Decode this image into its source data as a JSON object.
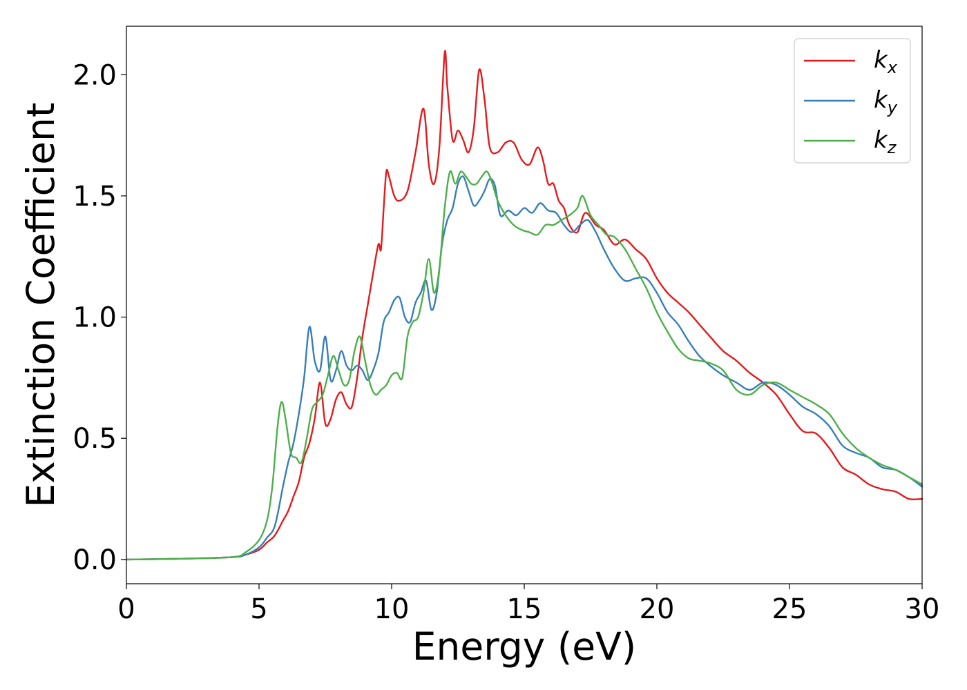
{
  "chart_data": {
    "type": "line",
    "title": "",
    "xlabel": "Energy (eV)",
    "ylabel": "Extinction Coefficient",
    "xlim": [
      0,
      30
    ],
    "ylim": [
      -0.1,
      2.2
    ],
    "xticks": [
      0,
      5,
      10,
      15,
      20,
      25,
      30
    ],
    "xtick_labels": [
      "0",
      "5",
      "10",
      "15",
      "20",
      "25",
      "30"
    ],
    "yticks": [
      0.0,
      0.5,
      1.0,
      1.5,
      2.0
    ],
    "ytick_labels": [
      "0.0",
      "0.5",
      "1.0",
      "1.5",
      "2.0"
    ],
    "grid": false,
    "legend_position": "top-right",
    "series": [
      {
        "name": "k",
        "sub": "x",
        "color": "#e41a1c",
        "x": [
          0,
          2,
          4,
          4.5,
          5,
          5.3,
          5.6,
          5.9,
          6.1,
          6.3,
          6.5,
          6.7,
          6.9,
          7.1,
          7.3,
          7.5,
          7.7,
          7.9,
          8.1,
          8.3,
          8.5,
          8.7,
          8.9,
          9.1,
          9.3,
          9.5,
          9.6,
          9.7,
          9.8,
          9.9,
          10.1,
          10.3,
          10.6,
          10.9,
          11.2,
          11.4,
          11.6,
          11.8,
          12.0,
          12.1,
          12.3,
          12.5,
          12.7,
          12.9,
          13.1,
          13.3,
          13.5,
          13.7,
          14.0,
          14.3,
          14.6,
          14.9,
          15.2,
          15.5,
          15.7,
          15.9,
          16.1,
          16.3,
          16.5,
          16.7,
          17.0,
          17.3,
          17.7,
          18.0,
          18.4,
          18.8,
          19.2,
          19.6,
          20.0,
          20.4,
          20.8,
          21.2,
          21.6,
          22.0,
          22.5,
          23.0,
          23.5,
          24.0,
          24.5,
          25.0,
          25.5,
          26.0,
          26.5,
          27.0,
          27.5,
          28.0,
          28.5,
          29.0,
          29.5,
          30.0
        ],
        "y": [
          0,
          0.003,
          0.01,
          0.02,
          0.04,
          0.07,
          0.1,
          0.16,
          0.2,
          0.26,
          0.32,
          0.42,
          0.48,
          0.58,
          0.73,
          0.56,
          0.58,
          0.66,
          0.69,
          0.64,
          0.63,
          0.75,
          0.92,
          1.05,
          1.18,
          1.3,
          1.28,
          1.45,
          1.6,
          1.58,
          1.5,
          1.48,
          1.52,
          1.68,
          1.86,
          1.63,
          1.55,
          1.7,
          2.09,
          1.95,
          1.73,
          1.77,
          1.73,
          1.68,
          1.78,
          2.02,
          1.9,
          1.7,
          1.68,
          1.72,
          1.72,
          1.65,
          1.63,
          1.7,
          1.65,
          1.55,
          1.55,
          1.48,
          1.45,
          1.38,
          1.35,
          1.43,
          1.38,
          1.36,
          1.3,
          1.32,
          1.28,
          1.24,
          1.16,
          1.1,
          1.06,
          1.02,
          0.97,
          0.92,
          0.86,
          0.82,
          0.77,
          0.73,
          0.68,
          0.6,
          0.53,
          0.52,
          0.46,
          0.38,
          0.35,
          0.31,
          0.29,
          0.28,
          0.25,
          0.25
        ]
      },
      {
        "name": "k",
        "sub": "y",
        "color": "#377eb8",
        "x": [
          0,
          2,
          4,
          4.5,
          5,
          5.3,
          5.6,
          5.9,
          6.1,
          6.3,
          6.5,
          6.7,
          6.9,
          7.1,
          7.3,
          7.5,
          7.7,
          7.9,
          8.1,
          8.3,
          8.5,
          8.7,
          8.9,
          9.1,
          9.3,
          9.5,
          9.7,
          9.9,
          10.1,
          10.3,
          10.5,
          10.7,
          10.9,
          11.1,
          11.3,
          11.5,
          11.7,
          11.9,
          12.1,
          12.3,
          12.5,
          12.7,
          12.9,
          13.1,
          13.3,
          13.5,
          13.7,
          13.9,
          14.1,
          14.4,
          14.7,
          15.0,
          15.3,
          15.6,
          15.9,
          16.2,
          16.5,
          16.8,
          17.1,
          17.4,
          17.7,
          18.0,
          18.4,
          18.8,
          19.2,
          19.6,
          20.0,
          20.4,
          20.8,
          21.2,
          21.6,
          22.0,
          22.5,
          23.0,
          23.5,
          24.0,
          24.5,
          25.0,
          25.5,
          26.0,
          26.5,
          27.0,
          27.5,
          28.0,
          28.5,
          29.0,
          29.5,
          30.0
        ],
        "y": [
          0,
          0.003,
          0.01,
          0.02,
          0.05,
          0.09,
          0.14,
          0.3,
          0.4,
          0.48,
          0.6,
          0.75,
          0.96,
          0.82,
          0.78,
          0.92,
          0.74,
          0.78,
          0.86,
          0.8,
          0.78,
          0.8,
          0.78,
          0.74,
          0.78,
          0.85,
          0.98,
          1.02,
          1.07,
          1.08,
          1.0,
          0.98,
          1.06,
          1.1,
          1.15,
          1.03,
          1.1,
          1.3,
          1.4,
          1.45,
          1.55,
          1.58,
          1.52,
          1.46,
          1.48,
          1.52,
          1.57,
          1.54,
          1.42,
          1.44,
          1.42,
          1.45,
          1.43,
          1.47,
          1.44,
          1.43,
          1.38,
          1.35,
          1.38,
          1.4,
          1.35,
          1.28,
          1.2,
          1.15,
          1.16,
          1.16,
          1.1,
          1.02,
          0.97,
          0.9,
          0.84,
          0.8,
          0.76,
          0.73,
          0.7,
          0.73,
          0.72,
          0.68,
          0.63,
          0.6,
          0.55,
          0.47,
          0.44,
          0.42,
          0.38,
          0.37,
          0.34,
          0.3
        ]
      },
      {
        "name": "k",
        "sub": "z",
        "color": "#4daf4a",
        "x": [
          0,
          2,
          4,
          4.5,
          5,
          5.3,
          5.5,
          5.7,
          5.85,
          6.0,
          6.2,
          6.4,
          6.6,
          6.8,
          7.0,
          7.2,
          7.4,
          7.6,
          7.8,
          8.0,
          8.2,
          8.4,
          8.6,
          8.8,
          9.0,
          9.2,
          9.4,
          9.6,
          9.8,
          10.0,
          10.2,
          10.4,
          10.6,
          10.8,
          11.0,
          11.2,
          11.4,
          11.6,
          11.8,
          12.0,
          12.2,
          12.4,
          12.6,
          12.8,
          13.0,
          13.2,
          13.4,
          13.6,
          13.8,
          14.0,
          14.3,
          14.6,
          14.9,
          15.2,
          15.5,
          15.8,
          16.1,
          16.4,
          16.7,
          17.0,
          17.2,
          17.5,
          17.8,
          18.1,
          18.4,
          18.8,
          19.2,
          19.6,
          20.0,
          20.4,
          20.8,
          21.2,
          21.6,
          22.0,
          22.5,
          23.0,
          23.5,
          24.0,
          24.5,
          25.0,
          25.5,
          26.0,
          26.5,
          27.0,
          27.5,
          28.0,
          28.5,
          29.0,
          29.5,
          30.0
        ],
        "y": [
          0,
          0.003,
          0.01,
          0.03,
          0.08,
          0.16,
          0.3,
          0.55,
          0.65,
          0.58,
          0.44,
          0.42,
          0.4,
          0.5,
          0.62,
          0.65,
          0.68,
          0.76,
          0.84,
          0.78,
          0.72,
          0.74,
          0.86,
          0.92,
          0.82,
          0.72,
          0.68,
          0.7,
          0.72,
          0.76,
          0.77,
          0.75,
          0.92,
          0.98,
          1.0,
          1.1,
          1.24,
          1.1,
          1.2,
          1.45,
          1.6,
          1.55,
          1.6,
          1.58,
          1.55,
          1.55,
          1.58,
          1.6,
          1.55,
          1.48,
          1.42,
          1.38,
          1.36,
          1.35,
          1.34,
          1.38,
          1.38,
          1.4,
          1.42,
          1.45,
          1.5,
          1.42,
          1.38,
          1.34,
          1.33,
          1.28,
          1.2,
          1.12,
          1.02,
          0.94,
          0.87,
          0.83,
          0.82,
          0.81,
          0.78,
          0.7,
          0.68,
          0.72,
          0.73,
          0.7,
          0.67,
          0.64,
          0.6,
          0.52,
          0.46,
          0.42,
          0.39,
          0.37,
          0.34,
          0.31
        ]
      }
    ]
  }
}
